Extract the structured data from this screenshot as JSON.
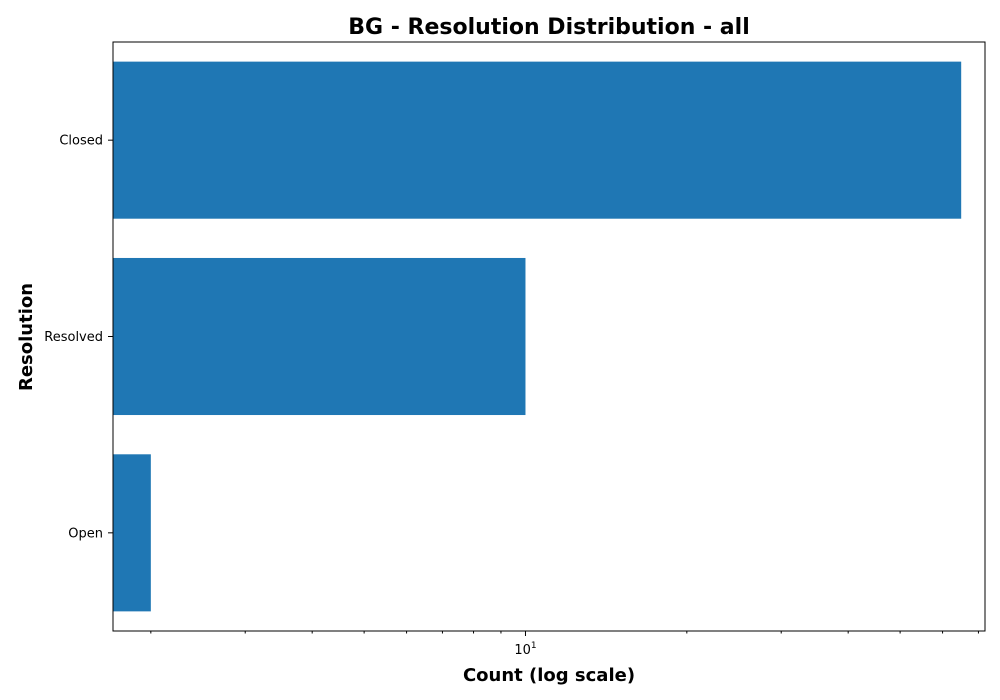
{
  "chart_data": {
    "type": "bar",
    "orientation": "horizontal",
    "title": "BG - Resolution Distribution - all",
    "xlabel": "Count (log scale)",
    "ylabel": "Resolution",
    "x_scale": "log",
    "xlim": [
      1.7,
      72
    ],
    "categories": [
      "Closed",
      "Resolved",
      "Open"
    ],
    "values": [
      65,
      10,
      2
    ],
    "x_major_ticks": [
      {
        "value": 10,
        "base": "10",
        "exponent": "1"
      }
    ],
    "x_minor_ticks": [
      2,
      3,
      4,
      5,
      6,
      7,
      8,
      9,
      20,
      30,
      40,
      50,
      60,
      70
    ],
    "bar_color": "#1f77b4",
    "grid": false,
    "legend": "none"
  }
}
